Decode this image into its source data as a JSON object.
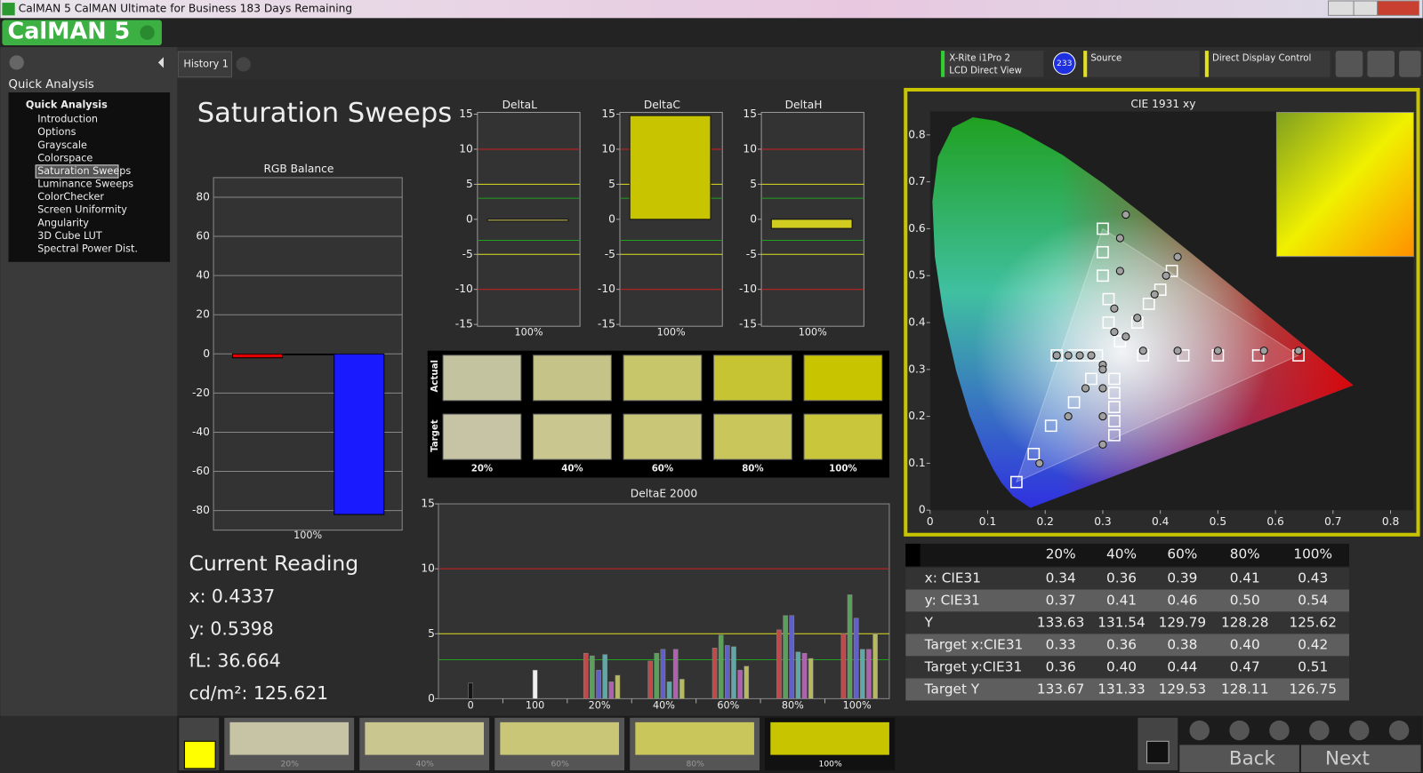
{
  "window": {
    "title": "CalMAN 5 CalMAN Ultimate for Business 183 Days Remaining",
    "logo": "CalMAN 5"
  },
  "sidebar": {
    "heading": "Quick Analysis",
    "root": "Quick Analysis",
    "items": [
      "Introduction",
      "Options",
      "Grayscale",
      "Colorspace",
      "Saturation Sweeps",
      "Luminance Sweeps",
      "ColorChecker",
      "Screen Uniformity",
      "Angularity",
      "3D Cube LUT",
      "Spectral Power Dist."
    ],
    "selected": 4
  },
  "tabs": [
    "History 1"
  ],
  "toolbar": {
    "meter": "X-Rite i1Pro 2",
    "meter_mode": "LCD Direct View",
    "meter_badge": "233",
    "source": "Source",
    "display": "Direct Display Control"
  },
  "page_title": "Saturation Sweeps",
  "rgb_balance": {
    "title": "RGB Balance",
    "category": "100%",
    "ylim": [
      -90,
      90
    ],
    "yticks": [
      -80,
      -60,
      -40,
      -20,
      0,
      20,
      40,
      60,
      80
    ],
    "values": [
      -2,
      0,
      -82
    ],
    "colors": [
      "#e00000",
      "#00a000",
      "#1a1aff"
    ]
  },
  "delta_charts": {
    "ylim": [
      -15,
      15
    ],
    "yticks": [
      -15,
      -10,
      -5,
      0,
      5,
      10,
      15
    ],
    "limit_lines": [
      {
        "value": 10,
        "color": "#d02020"
      },
      {
        "value": 5,
        "color": "#e0e020"
      },
      {
        "value": 3,
        "color": "#20a020"
      },
      {
        "value": -3,
        "color": "#20a020"
      },
      {
        "value": -5,
        "color": "#e0e020"
      },
      {
        "value": -10,
        "color": "#d02020"
      }
    ],
    "charts": [
      {
        "title": "DeltaL",
        "category": "100%",
        "value": -0.2,
        "color": "#d8d060"
      },
      {
        "title": "DeltaC",
        "category": "100%",
        "value": 14.8,
        "color": "#c8c400"
      },
      {
        "title": "DeltaH",
        "category": "100%",
        "value": -1.3,
        "color": "#d0cc20"
      }
    ]
  },
  "swatches": {
    "row_labels": [
      "Actual",
      "Target"
    ],
    "columns": [
      "20%",
      "40%",
      "60%",
      "80%",
      "100%"
    ],
    "actual_colors": [
      "#c4c3a0",
      "#c6c388",
      "#c8c66a",
      "#c6c432",
      "#c8c400"
    ],
    "target_colors": [
      "#c6c4a5",
      "#c9c78f",
      "#c9c777",
      "#c9c65b",
      "#c9c63c"
    ]
  },
  "delta_e": {
    "title": "DeltaE 2000",
    "ylim": [
      0,
      15
    ],
    "yticks": [
      0,
      5,
      10,
      15
    ],
    "limit_lines": [
      {
        "value": 10,
        "color": "#d02020"
      },
      {
        "value": 5,
        "color": "#e0e020"
      },
      {
        "value": 3,
        "color": "#20a020"
      }
    ],
    "groups": [
      {
        "label": "0",
        "values": [
          1.2
        ],
        "colors": [
          "#151515"
        ]
      },
      {
        "label": "100",
        "values": [
          2.2
        ],
        "colors": [
          "#f0f0f0"
        ]
      },
      {
        "label": "20%",
        "values": [
          3.5,
          3.3,
          2.2,
          3.4,
          1.3,
          1.8
        ],
        "colors": [
          "#c04a4a",
          "#5aa05a",
          "#6060c8",
          "#60a8a8",
          "#b060b0",
          "#b8b860"
        ]
      },
      {
        "label": "40%",
        "values": [
          2.9,
          3.5,
          3.8,
          1.3,
          3.8,
          1.5
        ],
        "colors": [
          "#c04a4a",
          "#5aa05a",
          "#6060c8",
          "#60a8a8",
          "#b060b0",
          "#b8b860"
        ]
      },
      {
        "label": "60%",
        "values": [
          3.9,
          4.9,
          4.1,
          4.0,
          2.2,
          2.5
        ],
        "colors": [
          "#c04a4a",
          "#5aa05a",
          "#6060c8",
          "#60a8a8",
          "#b060b0",
          "#b8b860"
        ]
      },
      {
        "label": "80%",
        "values": [
          5.3,
          6.4,
          6.4,
          3.6,
          3.5,
          3.1
        ],
        "colors": [
          "#c04a4a",
          "#5aa05a",
          "#6060c8",
          "#60a8a8",
          "#b060b0",
          "#b8b860"
        ]
      },
      {
        "label": "100%",
        "values": [
          5.0,
          8.0,
          6.2,
          3.8,
          3.8,
          5.0
        ],
        "colors": [
          "#c04a4a",
          "#5aa05a",
          "#6060c8",
          "#60a8a8",
          "#b060b0",
          "#b8b860"
        ]
      }
    ]
  },
  "cie": {
    "title": "CIE 1931 xy",
    "xlim": [
      0,
      0.84
    ],
    "ylim": [
      0,
      0.85
    ],
    "xticks": [
      0,
      0.1,
      0.2,
      0.3,
      0.4,
      0.5,
      0.6,
      0.7,
      0.8
    ],
    "yticks": [
      0,
      0.1,
      0.2,
      0.3,
      0.4,
      0.5,
      0.6,
      0.7,
      0.8
    ],
    "gamut": {
      "x": [
        0.64,
        0.3,
        0.15
      ],
      "y": [
        0.33,
        0.6,
        0.06
      ]
    },
    "series": [
      {
        "marker": "square",
        "color": "#ffffff",
        "x": [
          0.15,
          0.18,
          0.21,
          0.25,
          0.28,
          0.37,
          0.44,
          0.5,
          0.57,
          0.64,
          0.3,
          0.3,
          0.3,
          0.31,
          0.31,
          0.22,
          0.25,
          0.27,
          0.29,
          0.32,
          0.32,
          0.32,
          0.32,
          0.32,
          0.33,
          0.36,
          0.38,
          0.4,
          0.42
        ],
        "y": [
          0.06,
          0.12,
          0.18,
          0.23,
          0.28,
          0.33,
          0.33,
          0.33,
          0.33,
          0.33,
          0.6,
          0.55,
          0.5,
          0.45,
          0.4,
          0.33,
          0.33,
          0.33,
          0.33,
          0.16,
          0.19,
          0.22,
          0.25,
          0.28,
          0.36,
          0.4,
          0.44,
          0.47,
          0.51
        ]
      },
      {
        "marker": "circle",
        "color": "#a0a0a0",
        "x": [
          0.34,
          0.36,
          0.39,
          0.41,
          0.43,
          0.32,
          0.32,
          0.33,
          0.33,
          0.34,
          0.37,
          0.43,
          0.5,
          0.58,
          0.64,
          0.22,
          0.24,
          0.26,
          0.28,
          0.19,
          0.24,
          0.27,
          0.3,
          0.3,
          0.3,
          0.3,
          0.3
        ],
        "y": [
          0.37,
          0.41,
          0.46,
          0.5,
          0.54,
          0.38,
          0.43,
          0.51,
          0.58,
          0.63,
          0.34,
          0.34,
          0.34,
          0.34,
          0.34,
          0.33,
          0.33,
          0.33,
          0.33,
          0.1,
          0.2,
          0.26,
          0.31,
          0.14,
          0.2,
          0.26,
          0.3
        ]
      }
    ]
  },
  "table": {
    "columns": [
      "20%",
      "40%",
      "60%",
      "80%",
      "100%"
    ],
    "rows": [
      {
        "label": "x: CIE31",
        "cells": [
          "0.34",
          "0.36",
          "0.39",
          "0.41",
          "0.43"
        ]
      },
      {
        "label": "y: CIE31",
        "cells": [
          "0.37",
          "0.41",
          "0.46",
          "0.50",
          "0.54"
        ]
      },
      {
        "label": "Y",
        "cells": [
          "133.63",
          "131.54",
          "129.79",
          "128.28",
          "125.62"
        ]
      },
      {
        "label": "Target x:CIE31",
        "cells": [
          "0.33",
          "0.36",
          "0.38",
          "0.40",
          "0.42"
        ]
      },
      {
        "label": "Target y:CIE31",
        "cells": [
          "0.36",
          "0.40",
          "0.44",
          "0.47",
          "0.51"
        ]
      },
      {
        "label": "Target Y",
        "cells": [
          "133.67",
          "131.33",
          "129.53",
          "128.11",
          "126.75"
        ]
      }
    ]
  },
  "reading": {
    "title": "Current Reading",
    "lines": [
      "x: 0.4337",
      "y: 0.5398",
      "fL: 36.664",
      "cd/m²: 125.621"
    ]
  },
  "footer": {
    "current_color": "#ffff00",
    "swatches": [
      {
        "label": "20%",
        "color": "#c6c4a5"
      },
      {
        "label": "40%",
        "color": "#c9c78f"
      },
      {
        "label": "60%",
        "color": "#c9c777"
      },
      {
        "label": "80%",
        "color": "#c9c65b"
      },
      {
        "label": "100%",
        "color": "#c8c400"
      }
    ],
    "selected": 4,
    "back": "Back",
    "next": "Next"
  }
}
